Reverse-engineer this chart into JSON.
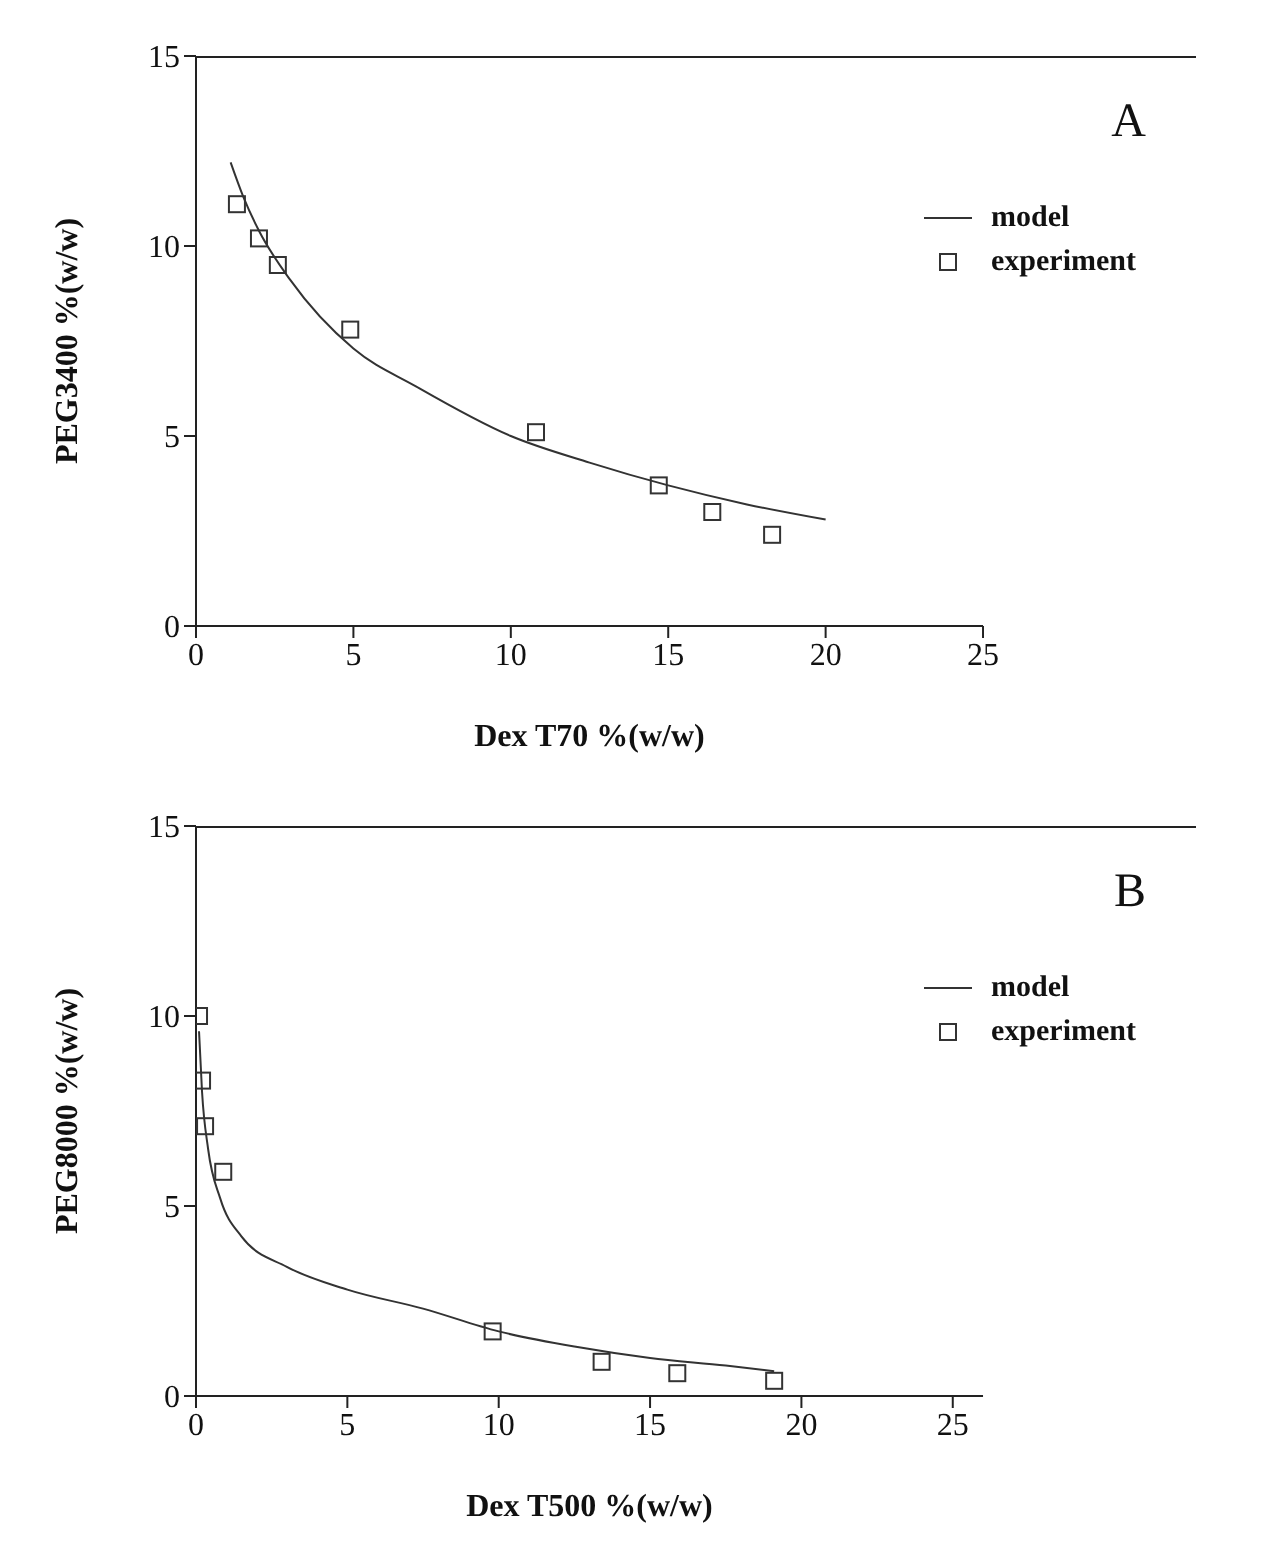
{
  "chart_data": [
    {
      "type": "scatter",
      "xlabel": "Dex  T70  %(w/w)",
      "ylabel": "PEG3400  %(w/w)",
      "annotations": [
        "A"
      ],
      "xlim": [
        0,
        25
      ],
      "xticks": [
        0,
        5,
        10,
        15,
        20,
        25
      ],
      "ylim": [
        0,
        15
      ],
      "yticks": [
        0,
        5,
        10,
        15
      ],
      "grid": false,
      "legend": "top right",
      "series": [
        {
          "name": "model",
          "type": "line",
          "color": "#333333",
          "marker": "none",
          "line_style": "solid",
          "x": [
            1.1,
            1.5,
            2,
            3,
            5,
            7,
            10,
            12.5,
            15,
            17.5,
            20
          ],
          "values": [
            12.2,
            11.3,
            10.4,
            9.1,
            7.3,
            6.3,
            5.0,
            4.3,
            3.7,
            3.2,
            2.8
          ]
        },
        {
          "name": "experiment",
          "color": "#333333",
          "marker": "square",
          "x": [
            1.3,
            2.0,
            2.6,
            4.9,
            10.8,
            14.7,
            16.4,
            18.3
          ],
          "values": [
            11.1,
            10.2,
            9.5,
            7.8,
            5.1,
            3.7,
            3.0,
            2.4
          ]
        }
      ]
    },
    {
      "type": "scatter",
      "xlabel": "Dex  T500  %(w/w)",
      "ylabel": "PEG8000  %(w/w)",
      "annotations": [
        "B"
      ],
      "xlim": [
        0,
        26
      ],
      "xticks": [
        0,
        5,
        10,
        15,
        20,
        25
      ],
      "ylim": [
        0,
        15
      ],
      "yticks": [
        0,
        5,
        10,
        15
      ],
      "grid": false,
      "legend": "top right",
      "series": [
        {
          "name": "model",
          "type": "line",
          "color": "#333333",
          "marker": "none",
          "line_style": "solid",
          "x": [
            0.1,
            0.2,
            0.4,
            0.8,
            1.5,
            3,
            5,
            7.5,
            10,
            12.5,
            15,
            17.5,
            19.1
          ],
          "values": [
            9.6,
            8.0,
            6.5,
            5.2,
            4.2,
            3.4,
            2.8,
            2.3,
            1.7,
            1.3,
            1.0,
            0.8,
            0.65
          ]
        },
        {
          "name": "experiment",
          "color": "#333333",
          "marker": "square",
          "x": [
            0.1,
            0.2,
            0.3,
            0.9,
            9.8,
            13.4,
            15.9,
            19.1
          ],
          "values": [
            10.0,
            8.3,
            7.1,
            5.9,
            1.7,
            0.9,
            0.6,
            0.4
          ]
        }
      ]
    }
  ]
}
